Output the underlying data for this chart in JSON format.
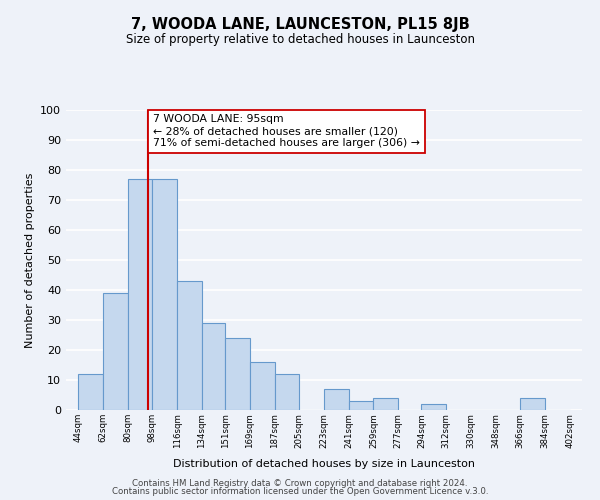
{
  "title": "7, WOODA LANE, LAUNCESTON, PL15 8JB",
  "subtitle": "Size of property relative to detached houses in Launceston",
  "xlabel": "Distribution of detached houses by size in Launceston",
  "ylabel": "Number of detached properties",
  "footer_lines": [
    "Contains HM Land Registry data © Crown copyright and database right 2024.",
    "Contains public sector information licensed under the Open Government Licence v.3.0."
  ],
  "bar_left_edges": [
    44,
    62,
    80,
    98,
    116,
    134,
    151,
    169,
    187,
    205,
    223,
    241,
    259,
    277,
    294,
    312,
    330,
    348,
    366,
    384
  ],
  "bar_heights": [
    12,
    39,
    77,
    77,
    43,
    29,
    24,
    16,
    12,
    0,
    7,
    3,
    4,
    0,
    2,
    0,
    0,
    0,
    4,
    0
  ],
  "bar_widths": [
    18,
    18,
    18,
    18,
    18,
    17,
    18,
    18,
    18,
    18,
    18,
    18,
    18,
    17,
    18,
    18,
    18,
    18,
    18,
    18
  ],
  "tick_labels": [
    "44sqm",
    "62sqm",
    "80sqm",
    "98sqm",
    "116sqm",
    "134sqm",
    "151sqm",
    "169sqm",
    "187sqm",
    "205sqm",
    "223sqm",
    "241sqm",
    "259sqm",
    "277sqm",
    "294sqm",
    "312sqm",
    "330sqm",
    "348sqm",
    "366sqm",
    "384sqm",
    "402sqm"
  ],
  "tick_positions": [
    44,
    62,
    80,
    98,
    116,
    134,
    151,
    169,
    187,
    205,
    223,
    241,
    259,
    277,
    294,
    312,
    330,
    348,
    366,
    384,
    402
  ],
  "bar_color": "#c5d8ee",
  "bar_edge_color": "#6699cc",
  "vline_x": 95,
  "vline_color": "#cc0000",
  "annotation_title": "7 WOODA LANE: 95sqm",
  "annotation_line1": "← 28% of detached houses are smaller (120)",
  "annotation_line2": "71% of semi-detached houses are larger (306) →",
  "annotation_box_color": "#ffffff",
  "annotation_border_color": "#cc0000",
  "ylim": [
    0,
    100
  ],
  "xlim": [
    35,
    411
  ],
  "background_color": "#eef2f9",
  "plot_bg_color": "#eef2f9",
  "grid_color": "#ffffff",
  "yticks": [
    0,
    10,
    20,
    30,
    40,
    50,
    60,
    70,
    80,
    90,
    100
  ]
}
